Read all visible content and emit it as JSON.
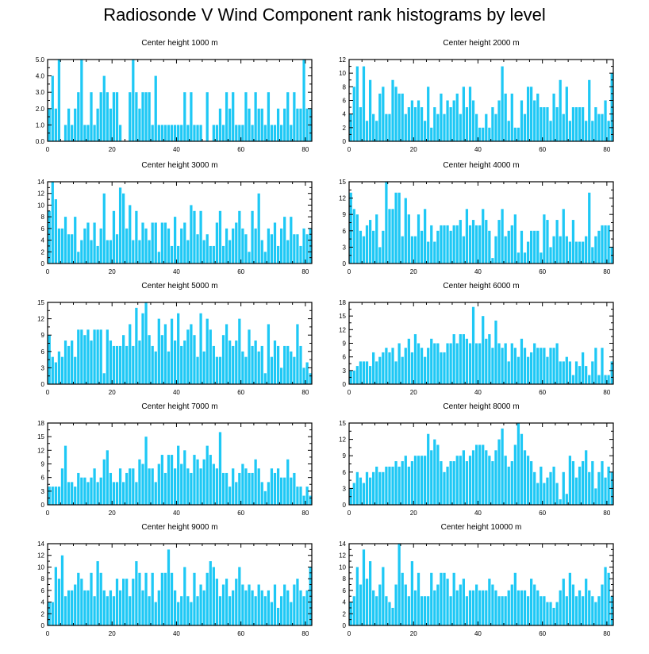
{
  "page": {
    "title": "Radiosonde V Wind Component rank histograms by level"
  },
  "style": {
    "bar_color": "#1EC8F5",
    "axis_color": "#000000",
    "background": "#FFFFFF"
  },
  "chart_data": [
    {
      "type": "bar",
      "title": "Center height 1000 m",
      "xlim": [
        0,
        82
      ],
      "ylim": [
        0,
        5
      ],
      "xticks": [
        0,
        20,
        40,
        60,
        80
      ],
      "yticks": [
        0,
        1,
        2,
        3,
        4,
        5
      ],
      "ytick_labels": [
        "0.0",
        "1.0",
        "2.0",
        "3.0",
        "4.0",
        "5.0"
      ],
      "values": [
        2,
        4,
        2,
        5,
        0,
        1,
        2,
        1,
        2,
        3,
        5,
        1,
        1,
        3,
        1,
        2,
        3,
        4,
        3,
        2,
        3,
        3,
        1,
        0,
        0,
        3,
        5,
        3,
        2,
        3,
        3,
        3,
        1,
        4,
        1,
        1,
        1,
        1,
        1,
        1,
        1,
        1,
        3,
        1,
        3,
        1,
        1,
        1,
        0,
        3,
        0,
        1,
        1,
        2,
        1,
        3,
        2,
        3,
        1,
        1,
        1,
        3,
        2,
        1,
        3,
        2,
        2,
        1,
        3,
        1,
        1,
        2,
        1,
        2,
        3,
        1,
        3,
        2,
        2,
        5,
        2,
        2
      ]
    },
    {
      "type": "bar",
      "title": "Center height 2000 m",
      "xlim": [
        0,
        82
      ],
      "ylim": [
        0,
        12
      ],
      "xticks": [
        0,
        20,
        40,
        60,
        80
      ],
      "yticks": [
        0,
        2,
        4,
        6,
        8,
        10,
        12
      ],
      "ytick_labels": [
        "0",
        "2",
        "4",
        "6",
        "8",
        "10",
        "12"
      ],
      "values": [
        4,
        8,
        11,
        5,
        11,
        3,
        9,
        4,
        3,
        7,
        8,
        4,
        4,
        9,
        8,
        7,
        7,
        4,
        5,
        6,
        5,
        6,
        5,
        3,
        8,
        2,
        5,
        4,
        7,
        4,
        6,
        5,
        6,
        7,
        4,
        8,
        5,
        8,
        6,
        4,
        2,
        2,
        4,
        2,
        5,
        4,
        6,
        11,
        7,
        3,
        7,
        2,
        2,
        6,
        4,
        8,
        8,
        6,
        7,
        5,
        5,
        5,
        3,
        7,
        5,
        9,
        4,
        8,
        3,
        5,
        5,
        5,
        5,
        3,
        9,
        3,
        5,
        4,
        4,
        6,
        3,
        10
      ]
    },
    {
      "type": "bar",
      "title": "Center height 3000 m",
      "xlim": [
        0,
        82
      ],
      "ylim": [
        0,
        14
      ],
      "xticks": [
        0,
        20,
        40,
        60,
        80
      ],
      "yticks": [
        0,
        2,
        4,
        6,
        8,
        10,
        12,
        14
      ],
      "ytick_labels": [
        "0",
        "2",
        "4",
        "6",
        "8",
        "10",
        "12",
        "14"
      ],
      "values": [
        9,
        14,
        11,
        6,
        6,
        8,
        5,
        5,
        8,
        2,
        4,
        6,
        7,
        4,
        7,
        3,
        6,
        12,
        4,
        4,
        9,
        5,
        13,
        12,
        6,
        10,
        4,
        9,
        4,
        7,
        6,
        4,
        7,
        7,
        2,
        7,
        7,
        6,
        3,
        8,
        3,
        6,
        7,
        4,
        10,
        9,
        5,
        9,
        4,
        5,
        3,
        3,
        7,
        9,
        3,
        6,
        4,
        6,
        7,
        9,
        6,
        5,
        2,
        9,
        6,
        12,
        4,
        2,
        6,
        5,
        7,
        3,
        6,
        8,
        4,
        8,
        5,
        5,
        3,
        6,
        5,
        6
      ]
    },
    {
      "type": "bar",
      "title": "Center height 4000 m",
      "xlim": [
        0,
        82
      ],
      "ylim": [
        0,
        15
      ],
      "xticks": [
        0,
        20,
        40,
        60,
        80
      ],
      "yticks": [
        0,
        3,
        6,
        9,
        12,
        15
      ],
      "ytick_labels": [
        "0",
        "3",
        "6",
        "9",
        "12",
        "15"
      ],
      "values": [
        13,
        10,
        9,
        6,
        5,
        7,
        8,
        6,
        9,
        3,
        6,
        15,
        10,
        10,
        13,
        13,
        5,
        12,
        9,
        5,
        5,
        9,
        6,
        10,
        4,
        7,
        4,
        6,
        7,
        7,
        7,
        6,
        7,
        7,
        8,
        5,
        10,
        7,
        8,
        7,
        7,
        10,
        8,
        6,
        1,
        5,
        8,
        10,
        5,
        6,
        7,
        9,
        2,
        6,
        2,
        4,
        6,
        6,
        6,
        2,
        9,
        8,
        3,
        5,
        8,
        5,
        10,
        5,
        4,
        8,
        4,
        4,
        4,
        5,
        13,
        3,
        5,
        6,
        7,
        7,
        7,
        3
      ]
    },
    {
      "type": "bar",
      "title": "Center height 5000 m",
      "xlim": [
        0,
        82
      ],
      "ylim": [
        0,
        15
      ],
      "xticks": [
        0,
        20,
        40,
        60,
        80
      ],
      "yticks": [
        0,
        3,
        6,
        9,
        12,
        15
      ],
      "ytick_labels": [
        "0",
        "3",
        "6",
        "9",
        "12",
        "15"
      ],
      "values": [
        9,
        5,
        4,
        6,
        5,
        8,
        7,
        8,
        5,
        10,
        10,
        9,
        10,
        8,
        10,
        10,
        10,
        2,
        10,
        8,
        7,
        7,
        7,
        9,
        7,
        11,
        7,
        14,
        8,
        13,
        15,
        9,
        7,
        6,
        12,
        9,
        11,
        6,
        12,
        8,
        13,
        7,
        8,
        10,
        11,
        9,
        5,
        13,
        6,
        12,
        10,
        7,
        5,
        5,
        9,
        11,
        8,
        7,
        8,
        12,
        6,
        5,
        10,
        7,
        8,
        6,
        7,
        2,
        11,
        5,
        8,
        7,
        3,
        7,
        7,
        6,
        5,
        11,
        7,
        3,
        4,
        2
      ]
    },
    {
      "type": "bar",
      "title": "Center height 6000 m",
      "xlim": [
        0,
        82
      ],
      "ylim": [
        0,
        18
      ],
      "xticks": [
        0,
        20,
        40,
        60,
        80
      ],
      "yticks": [
        0,
        3,
        6,
        9,
        12,
        15,
        18
      ],
      "ytick_labels": [
        "0",
        "3",
        "6",
        "9",
        "12",
        "15",
        "18"
      ],
      "values": [
        3,
        3,
        4,
        5,
        5,
        5,
        4,
        7,
        5,
        6,
        7,
        8,
        7,
        8,
        5,
        9,
        6,
        8,
        10,
        7,
        11,
        9,
        8,
        6,
        8,
        10,
        9,
        9,
        7,
        7,
        9,
        9,
        11,
        9,
        11,
        11,
        10,
        9,
        17,
        9,
        9,
        15,
        10,
        11,
        8,
        14,
        9,
        8,
        9,
        5,
        9,
        8,
        6,
        10,
        8,
        6,
        7,
        9,
        8,
        8,
        8,
        6,
        8,
        8,
        9,
        5,
        5,
        6,
        5,
        2,
        5,
        4,
        7,
        4,
        2,
        5,
        8,
        2,
        8,
        2,
        2,
        5
      ]
    },
    {
      "type": "bar",
      "title": "Center height 7000 m",
      "xlim": [
        0,
        82
      ],
      "ylim": [
        0,
        18
      ],
      "xticks": [
        0,
        20,
        40,
        60,
        80
      ],
      "yticks": [
        0,
        3,
        6,
        9,
        12,
        15,
        18
      ],
      "ytick_labels": [
        "0",
        "3",
        "6",
        "9",
        "12",
        "15",
        "18"
      ],
      "values": [
        4,
        4,
        4,
        4,
        8,
        13,
        5,
        5,
        4,
        7,
        6,
        6,
        5,
        6,
        8,
        5,
        6,
        10,
        12,
        7,
        5,
        5,
        8,
        5,
        7,
        8,
        8,
        5,
        10,
        9,
        15,
        8,
        8,
        5,
        9,
        11,
        7,
        11,
        11,
        8,
        13,
        9,
        12,
        8,
        7,
        11,
        10,
        8,
        10,
        13,
        11,
        9,
        8,
        16,
        7,
        7,
        4,
        8,
        5,
        7,
        9,
        8,
        7,
        7,
        10,
        8,
        5,
        3,
        5,
        8,
        7,
        8,
        6,
        6,
        10,
        6,
        7,
        4,
        4,
        2,
        4,
        2
      ]
    },
    {
      "type": "bar",
      "title": "Center height 8000 m",
      "xlim": [
        0,
        82
      ],
      "ylim": [
        0,
        15
      ],
      "xticks": [
        0,
        20,
        40,
        60,
        80
      ],
      "yticks": [
        0,
        3,
        6,
        9,
        12,
        15
      ],
      "ytick_labels": [
        "0",
        "3",
        "6",
        "9",
        "12",
        "15"
      ],
      "values": [
        3,
        4,
        6,
        5,
        4,
        6,
        5,
        6,
        7,
        6,
        6,
        7,
        7,
        7,
        8,
        7,
        8,
        9,
        7,
        8,
        9,
        9,
        9,
        9,
        13,
        10,
        12,
        11,
        8,
        6,
        7,
        8,
        8,
        9,
        9,
        10,
        8,
        9,
        10,
        11,
        11,
        11,
        10,
        9,
        8,
        10,
        12,
        14,
        9,
        7,
        8,
        11,
        15,
        13,
        10,
        9,
        8,
        6,
        4,
        7,
        4,
        5,
        6,
        7,
        4,
        1,
        6,
        2,
        9,
        8,
        5,
        7,
        8,
        10,
        6,
        8,
        3,
        6,
        8,
        5,
        7,
        6
      ]
    },
    {
      "type": "bar",
      "title": "Center height 9000 m",
      "xlim": [
        0,
        82
      ],
      "ylim": [
        0,
        14
      ],
      "xticks": [
        0,
        20,
        40,
        60,
        80
      ],
      "yticks": [
        0,
        2,
        4,
        6,
        8,
        10,
        12,
        14
      ],
      "ytick_labels": [
        "0",
        "2",
        "4",
        "6",
        "8",
        "10",
        "12",
        "14"
      ],
      "values": [
        4,
        4,
        10,
        8,
        12,
        5,
        6,
        6,
        7,
        9,
        8,
        6,
        6,
        9,
        5,
        11,
        9,
        6,
        5,
        6,
        5,
        8,
        6,
        8,
        8,
        5,
        8,
        11,
        9,
        6,
        9,
        5,
        9,
        4,
        6,
        9,
        9,
        13,
        9,
        6,
        4,
        5,
        10,
        5,
        4,
        9,
        5,
        7,
        6,
        9,
        11,
        10,
        8,
        5,
        7,
        8,
        5,
        6,
        8,
        10,
        7,
        6,
        7,
        6,
        5,
        7,
        6,
        5,
        6,
        4,
        7,
        3,
        5,
        7,
        6,
        4,
        7,
        8,
        6,
        5,
        6,
        10
      ]
    },
    {
      "type": "bar",
      "title": "Center height 10000 m",
      "xlim": [
        0,
        82
      ],
      "ylim": [
        0,
        14
      ],
      "xticks": [
        0,
        20,
        40,
        60,
        80
      ],
      "yticks": [
        0,
        2,
        4,
        6,
        8,
        10,
        12,
        14
      ],
      "ytick_labels": [
        "0",
        "2",
        "4",
        "6",
        "8",
        "10",
        "12",
        "14"
      ],
      "values": [
        4,
        5,
        10,
        7,
        13,
        8,
        11,
        6,
        5,
        7,
        10,
        5,
        4,
        3,
        7,
        14,
        9,
        7,
        5,
        11,
        6,
        9,
        5,
        5,
        5,
        9,
        6,
        7,
        9,
        9,
        8,
        5,
        9,
        6,
        7,
        8,
        5,
        6,
        6,
        7,
        6,
        6,
        6,
        8,
        7,
        6,
        5,
        5,
        5,
        6,
        7,
        9,
        6,
        6,
        6,
        5,
        8,
        7,
        6,
        5,
        5,
        4,
        4,
        3,
        4,
        6,
        8,
        5,
        9,
        7,
        5,
        6,
        5,
        8,
        6,
        5,
        4,
        5,
        7,
        10,
        9,
        5
      ]
    }
  ]
}
